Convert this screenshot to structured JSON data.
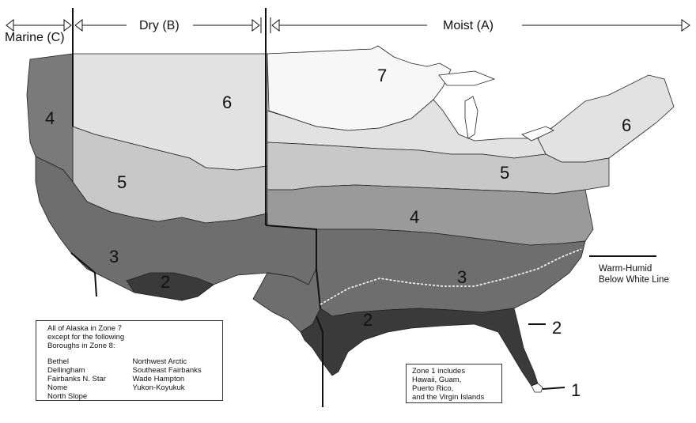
{
  "headers": {
    "marine": "Marine (C)",
    "dry": "Dry (B)",
    "moist": "Moist (A)"
  },
  "zones": {
    "z1": "1",
    "z2a": "2",
    "z2b": "2",
    "z2c": "2",
    "z3a": "3",
    "z3b": "3",
    "z4a": "4",
    "z4b": "4",
    "z5a": "5",
    "z5b": "5",
    "z6a": "6",
    "z6b": "6",
    "z7": "7"
  },
  "warm_humid": {
    "line1": "Warm-Humid",
    "line2": "Below White Line"
  },
  "alaska_note": {
    "intro": [
      "All of Alaska in Zone 7",
      "except for the following",
      "Boroughs in Zone 8:"
    ],
    "col1": [
      "Bethel",
      "Dellingham",
      "Fairbanks N. Star",
      "Nome",
      "North Slope"
    ],
    "col2": [
      "Northwest Arctic",
      "Southeast Fairbanks",
      "Wade Hampton",
      "Yukon-Koyukuk"
    ]
  },
  "zone1_note": [
    "Zone 1 includes",
    "Hawaii, Guam,",
    "Puerto Rico,",
    "and the Virgin Islands"
  ],
  "colors": {
    "zone1": "#ffffff",
    "zone2": "#3a3a3a",
    "zone3": "#6e6e6e",
    "zone4": "#9a9a9a",
    "zone4_marine": "#7a7a7a",
    "zone5": "#c8c8c8",
    "zone6": "#e2e2e2",
    "zone7": "#f7f7f7"
  }
}
